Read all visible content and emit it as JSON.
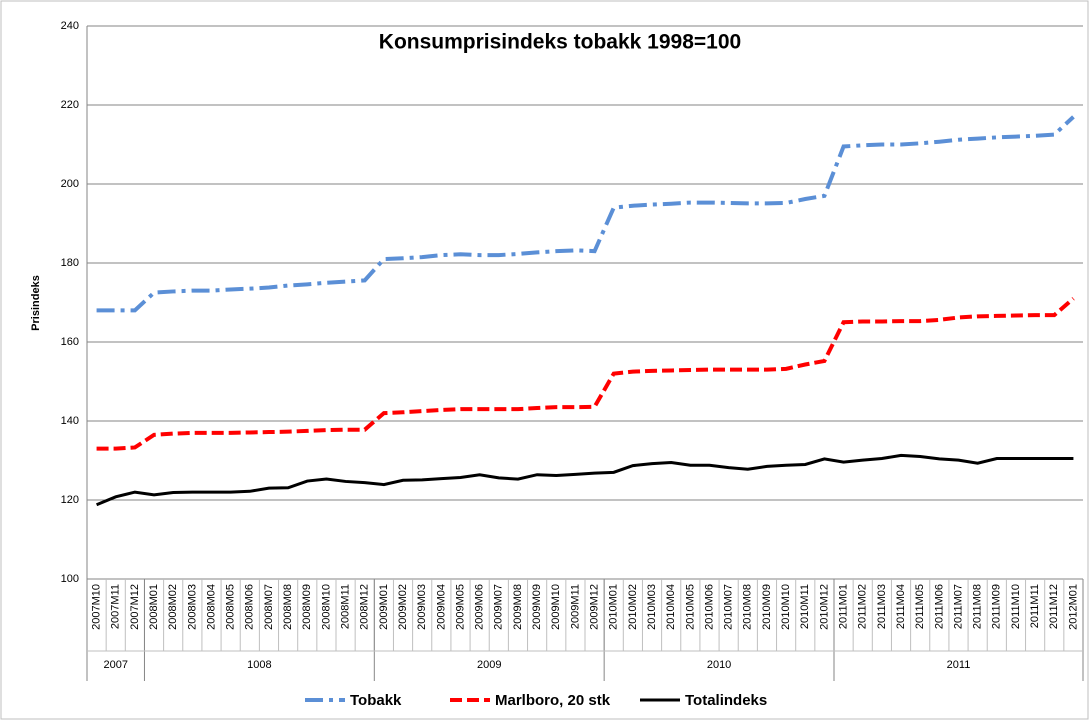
{
  "chart_data": {
    "type": "line",
    "title": "Konsumprisindeks tobakk 1998=100",
    "y_label": "Prisindeks",
    "categories": [
      "2007M10",
      "2007M11",
      "2007M12",
      "2008M01",
      "2008M02",
      "2008M03",
      "2008M04",
      "2008M05",
      "2008M06",
      "2008M07",
      "2008M08",
      "2008M09",
      "2008M10",
      "2008M11",
      "2008M12",
      "2009M01",
      "2009M02",
      "2009M03",
      "2009M04",
      "2009M05",
      "2009M06",
      "2009M07",
      "2009M08",
      "2009M09",
      "2009M10",
      "2009M11",
      "2009M12",
      "2010M01",
      "2010M02",
      "2010M03",
      "2010M04",
      "2010M05",
      "2010M06",
      "2010M07",
      "2010M08",
      "2010M09",
      "2010M10",
      "2010M11",
      "2010M12",
      "2011M01",
      "2011M02",
      "2011M03",
      "2011M04",
      "2011M05",
      "2011M06",
      "2011M07",
      "2011M08",
      "2011M09",
      "2011M10",
      "2011M11",
      "2011M12",
      "2012M01"
    ],
    "group_labels": [
      "2007",
      "1008",
      "2009",
      "2010",
      "2011"
    ],
    "series": [
      {
        "name": "Tobakk",
        "color": "#5b8fd6",
        "dash": "dash-dot",
        "values": [
          168,
          168,
          168,
          172.5,
          172.8,
          173,
          173,
          173.3,
          173.5,
          173.8,
          174.3,
          174.6,
          175,
          175.3,
          175.6,
          181,
          181.2,
          181.5,
          182,
          182.2,
          182,
          182,
          182.3,
          182.7,
          183,
          183.2,
          183,
          194,
          194.5,
          194.8,
          195,
          195.3,
          195.3,
          195.2,
          195.1,
          195.1,
          195.2,
          196.2,
          197,
          209.5,
          209.8,
          210,
          210,
          210.3,
          210.7,
          211.2,
          211.5,
          211.8,
          212,
          212.2,
          212.5,
          217
        ]
      },
      {
        "name": "Marlboro, 20 stk",
        "color": "#ff0000",
        "dash": "dashed",
        "values": [
          133,
          133,
          133.3,
          136.5,
          136.8,
          137,
          137,
          137,
          137.1,
          137.2,
          137.3,
          137.5,
          137.7,
          137.8,
          137.8,
          142,
          142.2,
          142.5,
          142.8,
          143,
          143,
          143,
          143,
          143.3,
          143.5,
          143.5,
          143.6,
          152,
          152.5,
          152.7,
          152.8,
          152.9,
          153,
          153,
          153,
          153,
          153.2,
          154.3,
          155.2,
          165,
          165.2,
          165.2,
          165.3,
          165.3,
          165.6,
          166.2,
          166.5,
          166.6,
          166.7,
          166.8,
          166.8,
          171
        ]
      },
      {
        "name": "Totalindeks",
        "color": "#000000",
        "dash": "solid",
        "values": [
          118.8,
          120.8,
          122,
          121.3,
          121.9,
          122,
          122,
          122,
          122.2,
          123,
          123.1,
          124.8,
          125.3,
          124.7,
          124.4,
          123.9,
          125,
          125.1,
          125.4,
          125.7,
          126.4,
          125.6,
          125.3,
          126.4,
          126.2,
          126.5,
          126.8,
          127,
          128.7,
          129.2,
          129.5,
          128.8,
          128.8,
          128.2,
          127.8,
          128.5,
          128.8,
          129,
          130.4,
          129.6,
          130.1,
          130.5,
          131.3,
          131,
          130.4,
          130.1,
          129.3,
          130.5,
          130.5,
          130.5,
          130.5,
          130.5
        ]
      }
    ],
    "ylim": [
      100,
      240
    ],
    "yticks": [
      100,
      120,
      140,
      160,
      180,
      200,
      220,
      240
    ],
    "grid": true,
    "legend": "bottom"
  }
}
